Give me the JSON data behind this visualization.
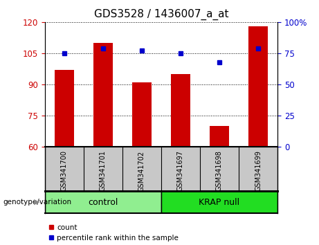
{
  "title": "GDS3528 / 1436007_a_at",
  "categories": [
    "GSM341700",
    "GSM341701",
    "GSM341702",
    "GSM341697",
    "GSM341698",
    "GSM341699"
  ],
  "bar_values": [
    97,
    110,
    91,
    95,
    70,
    118
  ],
  "dot_values": [
    75,
    79,
    77,
    75,
    68,
    79
  ],
  "ylim_left": [
    60,
    120
  ],
  "ylim_right": [
    0,
    100
  ],
  "yticks_left": [
    60,
    75,
    90,
    105,
    120
  ],
  "yticks_right": [
    0,
    25,
    50,
    75,
    100
  ],
  "bar_color": "#cc0000",
  "dot_color": "#0000cc",
  "groups": [
    {
      "label": "control",
      "indices": [
        0,
        1,
        2
      ],
      "color": "#90ee90"
    },
    {
      "label": "KRAP null",
      "indices": [
        3,
        4,
        5
      ],
      "color": "#22dd22"
    }
  ],
  "group_label": "genotype/variation",
  "legend_count_label": "count",
  "legend_pct_label": "percentile rank within the sample",
  "tick_label_bg": "#c8c8c8",
  "title_fontsize": 11,
  "axis_fontsize": 8.5,
  "label_fontsize": 8
}
